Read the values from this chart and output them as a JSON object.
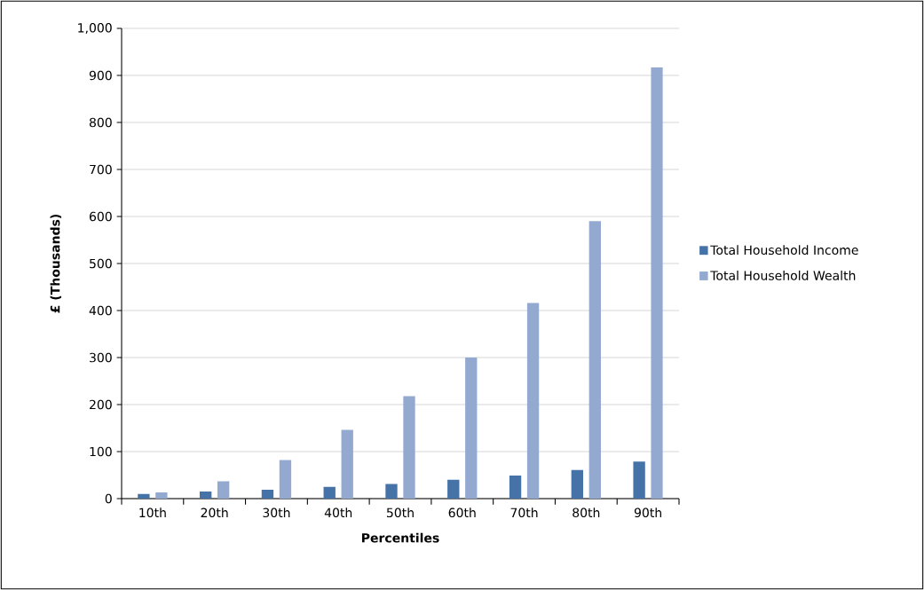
{
  "chart_data": {
    "type": "bar",
    "xlabel": "Percentiles",
    "ylabel": "£ (Thousands)",
    "categories": [
      "10th",
      "20th",
      "30th",
      "40th",
      "50th",
      "60th",
      "70th",
      "80th",
      "90th"
    ],
    "series": [
      {
        "name": "Total Household Income",
        "color": "#4572a7",
        "values": [
          10,
          15,
          19,
          25,
          31,
          40,
          49,
          61,
          79
        ]
      },
      {
        "name": "Total Household Wealth",
        "color": "#93a9d0",
        "values": [
          13,
          37,
          82,
          146,
          218,
          300,
          416,
          590,
          917
        ]
      }
    ],
    "ylim": [
      0,
      1000
    ],
    "yticks": [
      0,
      100,
      200,
      300,
      400,
      500,
      600,
      700,
      800,
      900,
      {
        "value": 1000,
        "label": "1,000"
      }
    ],
    "grid": "y",
    "legend": "right"
  }
}
